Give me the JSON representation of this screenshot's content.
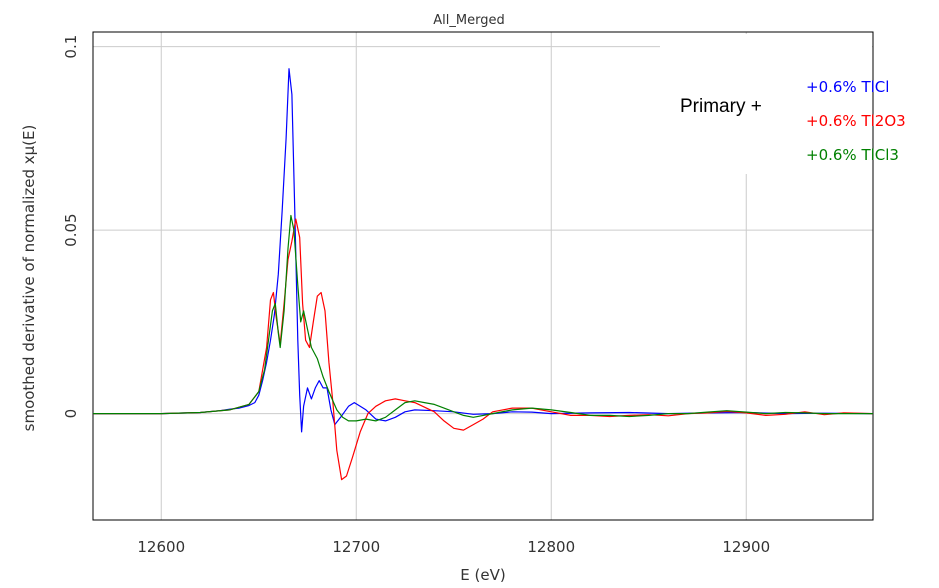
{
  "chart_data": {
    "type": "line",
    "title": "All_Merged",
    "xlabel": "E (eV)",
    "ylabel": "smoothed derivative of normalized xμ(E)",
    "xlim": [
      12565,
      12965
    ],
    "ylim": [
      -0.029,
      0.104
    ],
    "x_ticks": [
      "12600",
      "12700",
      "12800",
      "12900"
    ],
    "y_ticks": [
      "0",
      "0.05",
      "0.1"
    ],
    "grid": true,
    "legend_position": "top-right",
    "annotation": "Primary +",
    "series": [
      {
        "name": "+0.6% TlCl",
        "color": "#0000ff",
        "points": [
          [
            12565,
            0
          ],
          [
            12600,
            0
          ],
          [
            12620,
            0.0003
          ],
          [
            12630,
            0.0008
          ],
          [
            12635,
            0.0012
          ],
          [
            12640,
            0.0015
          ],
          [
            12645,
            0.0022
          ],
          [
            12648,
            0.003
          ],
          [
            12650,
            0.005
          ],
          [
            12652,
            0.009
          ],
          [
            12654,
            0.014
          ],
          [
            12656,
            0.02
          ],
          [
            12658,
            0.027
          ],
          [
            12660,
            0.038
          ],
          [
            12662,
            0.055
          ],
          [
            12664,
            0.075
          ],
          [
            12665.5,
            0.094
          ],
          [
            12667,
            0.087
          ],
          [
            12668.5,
            0.055
          ],
          [
            12670,
            0.02
          ],
          [
            12671,
            0.005
          ],
          [
            12672,
            -0.005
          ],
          [
            12673,
            0.002
          ],
          [
            12675,
            0.007
          ],
          [
            12677,
            0.004
          ],
          [
            12679,
            0.007
          ],
          [
            12681,
            0.009
          ],
          [
            12683,
            0.007
          ],
          [
            12685,
            0.007
          ],
          [
            12687,
            0.001
          ],
          [
            12689,
            -0.003
          ],
          [
            12692,
            -0.001
          ],
          [
            12696,
            0.002
          ],
          [
            12699,
            0.003
          ],
          [
            12702,
            0.002
          ],
          [
            12705,
            0.001
          ],
          [
            12710,
            -0.0015
          ],
          [
            12715,
            -0.002
          ],
          [
            12720,
            -0.001
          ],
          [
            12725,
            0.0005
          ],
          [
            12730,
            0.001
          ],
          [
            12740,
            0.0008
          ],
          [
            12750,
            0.0005
          ],
          [
            12760,
            -0.0002
          ],
          [
            12770,
            0
          ],
          [
            12780,
            0.0005
          ],
          [
            12790,
            0.0004
          ],
          [
            12800,
            0
          ],
          [
            12820,
            0.0002
          ],
          [
            12840,
            0.0003
          ],
          [
            12860,
            0
          ],
          [
            12880,
            0.0002
          ],
          [
            12900,
            0.0003
          ],
          [
            12920,
            0
          ],
          [
            12940,
            0.0001
          ],
          [
            12965,
            0
          ]
        ]
      },
      {
        "name": "+0.6% Tl2O3",
        "color": "#ff0000",
        "points": [
          [
            12565,
            0
          ],
          [
            12600,
            0
          ],
          [
            12620,
            0.0003
          ],
          [
            12635,
            0.001
          ],
          [
            12645,
            0.0025
          ],
          [
            12650,
            0.006
          ],
          [
            12654,
            0.018
          ],
          [
            12656,
            0.031
          ],
          [
            12657.5,
            0.033
          ],
          [
            12659,
            0.026
          ],
          [
            12661,
            0.019
          ],
          [
            12663,
            0.03
          ],
          [
            12665,
            0.042
          ],
          [
            12667,
            0.047
          ],
          [
            12669,
            0.053
          ],
          [
            12671,
            0.048
          ],
          [
            12672.5,
            0.03
          ],
          [
            12674,
            0.02
          ],
          [
            12676,
            0.018
          ],
          [
            12678,
            0.025
          ],
          [
            12680,
            0.032
          ],
          [
            12682,
            0.033
          ],
          [
            12684,
            0.028
          ],
          [
            12686,
            0.014
          ],
          [
            12688,
            0.003
          ],
          [
            12690,
            -0.01
          ],
          [
            12692.5,
            -0.018
          ],
          [
            12695,
            -0.017
          ],
          [
            12698,
            -0.012
          ],
          [
            12702,
            -0.005
          ],
          [
            12706,
            0
          ],
          [
            12710,
            0.002
          ],
          [
            12715,
            0.0035
          ],
          [
            12720,
            0.004
          ],
          [
            12725,
            0.0035
          ],
          [
            12730,
            0.003
          ],
          [
            12740,
            0.0005
          ],
          [
            12745,
            -0.002
          ],
          [
            12750,
            -0.004
          ],
          [
            12755,
            -0.0045
          ],
          [
            12760,
            -0.003
          ],
          [
            12765,
            -0.0015
          ],
          [
            12770,
            0.0005
          ],
          [
            12780,
            0.0015
          ],
          [
            12790,
            0.0015
          ],
          [
            12800,
            0.0005
          ],
          [
            12810,
            -0.0005
          ],
          [
            12820,
            -0.0005
          ],
          [
            12830,
            -0.0008
          ],
          [
            12840,
            -0.0005
          ],
          [
            12850,
            -0.0003
          ],
          [
            12860,
            -0.0006
          ],
          [
            12870,
            0
          ],
          [
            12880,
            0.0002
          ],
          [
            12890,
            0.0006
          ],
          [
            12900,
            0.0002
          ],
          [
            12910,
            -0.0005
          ],
          [
            12920,
            -0.0002
          ],
          [
            12930,
            0.0005
          ],
          [
            12940,
            -0.0003
          ],
          [
            12950,
            0.0002
          ],
          [
            12965,
            0
          ]
        ]
      },
      {
        "name": "+0.6% TlCl3",
        "color": "#008000",
        "points": [
          [
            12565,
            0
          ],
          [
            12600,
            0
          ],
          [
            12620,
            0.0003
          ],
          [
            12635,
            0.001
          ],
          [
            12645,
            0.0025
          ],
          [
            12650,
            0.006
          ],
          [
            12653,
            0.012
          ],
          [
            12655,
            0.02
          ],
          [
            12657,
            0.028
          ],
          [
            12658.5,
            0.03
          ],
          [
            12660,
            0.022
          ],
          [
            12661,
            0.018
          ],
          [
            12663,
            0.028
          ],
          [
            12665,
            0.045
          ],
          [
            12666.5,
            0.054
          ],
          [
            12668,
            0.05
          ],
          [
            12670,
            0.035
          ],
          [
            12671.5,
            0.025
          ],
          [
            12673,
            0.028
          ],
          [
            12675,
            0.023
          ],
          [
            12677,
            0.018
          ],
          [
            12680,
            0.015
          ],
          [
            12683,
            0.01
          ],
          [
            12686,
            0.006
          ],
          [
            12690,
            0.001
          ],
          [
            12693,
            -0.001
          ],
          [
            12696,
            -0.002
          ],
          [
            12700,
            -0.002
          ],
          [
            12705,
            -0.0015
          ],
          [
            12710,
            -0.002
          ],
          [
            12715,
            -0.001
          ],
          [
            12720,
            0.001
          ],
          [
            12725,
            0.003
          ],
          [
            12730,
            0.0035
          ],
          [
            12735,
            0.003
          ],
          [
            12740,
            0.0025
          ],
          [
            12745,
            0.0015
          ],
          [
            12750,
            0.0005
          ],
          [
            12755,
            -0.0005
          ],
          [
            12760,
            -0.001
          ],
          [
            12770,
            0
          ],
          [
            12780,
            0.001
          ],
          [
            12790,
            0.0015
          ],
          [
            12800,
            0.001
          ],
          [
            12810,
            0.0003
          ],
          [
            12820,
            -0.0005
          ],
          [
            12830,
            -0.0005
          ],
          [
            12840,
            -0.0008
          ],
          [
            12850,
            -0.0005
          ],
          [
            12860,
            0
          ],
          [
            12870,
            0
          ],
          [
            12880,
            0.0004
          ],
          [
            12890,
            0.0008
          ],
          [
            12900,
            0.0004
          ],
          [
            12910,
            0
          ],
          [
            12920,
            0.0003
          ],
          [
            12930,
            0.0002
          ],
          [
            12940,
            0
          ],
          [
            12950,
            0
          ],
          [
            12965,
            0
          ]
        ]
      }
    ]
  }
}
